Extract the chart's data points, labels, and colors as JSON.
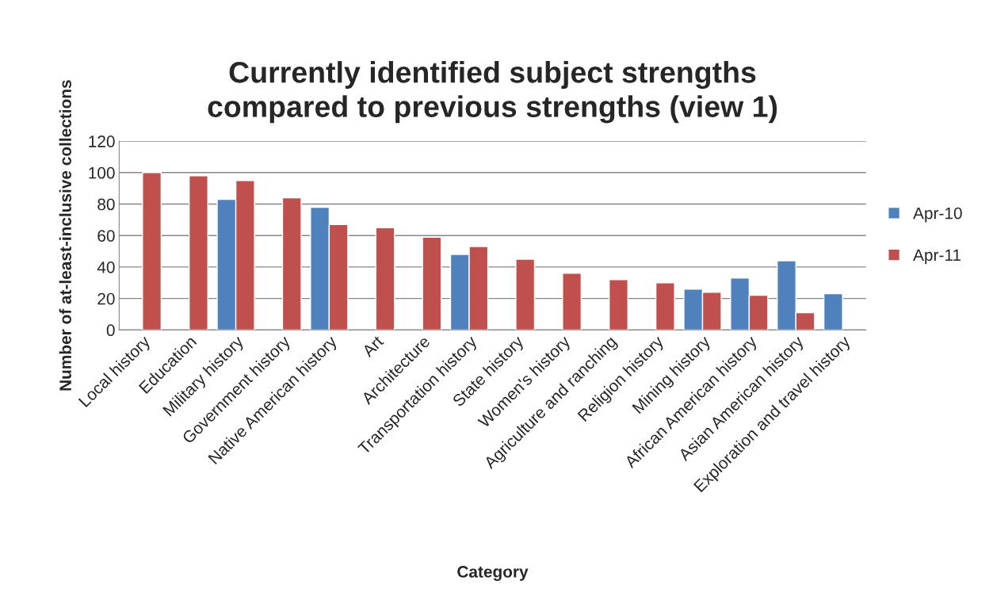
{
  "chart_data": {
    "type": "bar",
    "title": "Currently identified subject strengths\ncompared to previous strengths (view 1)",
    "xlabel": "Category",
    "ylabel": "Number of at-least-inclusive collections",
    "categories": [
      "Local history",
      "Education",
      "Military history",
      "Government history",
      "Native American history",
      "Art",
      "Architecture",
      "Transportation history",
      "State history",
      "Women's history",
      "Agriculture and ranching",
      "Religion history",
      "Mining history",
      "African American history",
      "Asian American history",
      "Exploration and travel history"
    ],
    "series": [
      {
        "name": "Apr-10",
        "color": "#4f81bd",
        "values": [
          null,
          null,
          83,
          null,
          78,
          null,
          null,
          48,
          null,
          null,
          null,
          null,
          26,
          33,
          44,
          23
        ]
      },
      {
        "name": "Apr-11",
        "color": "#c0504d",
        "values": [
          100,
          98,
          95,
          84,
          67,
          65,
          59,
          53,
          45,
          36,
          32,
          30,
          24,
          22,
          11,
          null
        ]
      }
    ],
    "ylim": [
      0,
      120
    ],
    "yticks": [
      0,
      20,
      40,
      60,
      80,
      100,
      120
    ],
    "grid": "y",
    "legend": "right"
  }
}
